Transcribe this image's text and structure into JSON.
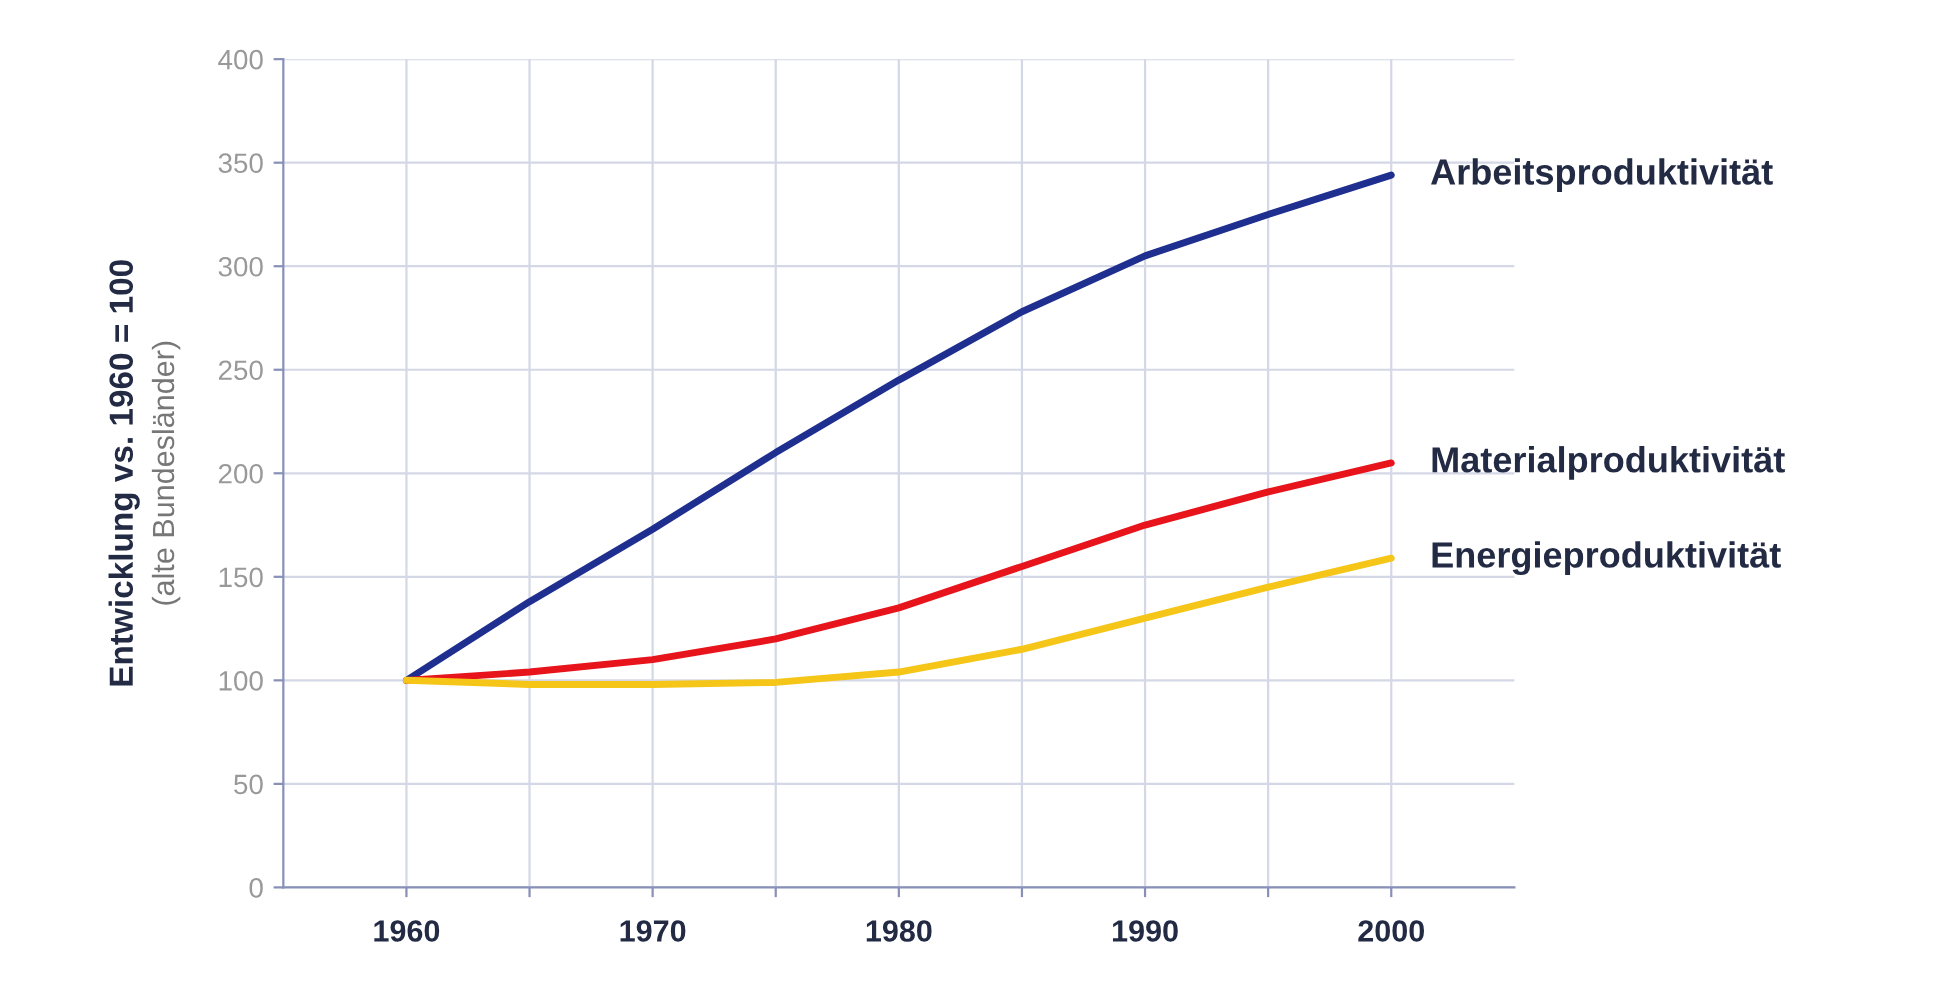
{
  "chart_data": {
    "type": "line",
    "ylabel": "Entwicklung vs. 1960 = 100",
    "annotations": [
      "(alte Bundesländer)"
    ],
    "x": [
      1960,
      1965,
      1970,
      1975,
      1980,
      1985,
      1990,
      1995,
      2000
    ],
    "series": [
      {
        "name": "Arbeitsproduktivität",
        "color": "#1f2f8f",
        "values": [
          100,
          138,
          173,
          210,
          245,
          278,
          305,
          325,
          344
        ]
      },
      {
        "name": "Materialproduktivität",
        "color": "#e8141c",
        "values": [
          100,
          104,
          110,
          120,
          135,
          155,
          175,
          191,
          205
        ]
      },
      {
        "name": "Energieproduktivität",
        "color": "#f5c518",
        "values": [
          100,
          98,
          98,
          99,
          104,
          115,
          130,
          145,
          159
        ]
      }
    ],
    "xlim": [
      1955,
      2005
    ],
    "xticks": [
      1960,
      {
        "value": 1965,
        "label": null
      },
      1970,
      {
        "value": 1975,
        "label": null
      },
      1980,
      {
        "value": 1985,
        "label": null
      },
      1990,
      {
        "value": 1995,
        "label": null
      },
      2000
    ],
    "ylim": [
      0,
      400
    ],
    "yticks": [
      0,
      50,
      100,
      150,
      200,
      250,
      300,
      350,
      400
    ],
    "grid": true,
    "marker": "none",
    "line_style": "solid"
  }
}
